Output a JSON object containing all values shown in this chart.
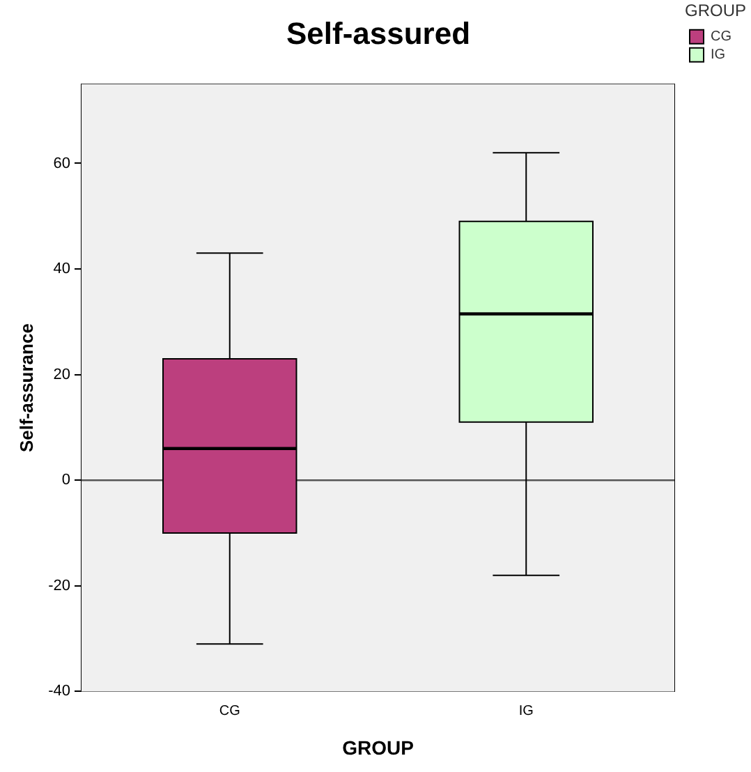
{
  "chart_data": {
    "type": "box",
    "title": "Self-assured",
    "xlabel": "GROUP",
    "ylabel": "Self-assurance",
    "legend_title": "GROUP",
    "legend": "top right",
    "categories": [
      "CG",
      "IG"
    ],
    "series": [
      {
        "name": "CG",
        "color": "#bc3f7e",
        "boxes": [
          {
            "low": -31,
            "q1": -10,
            "median": 6,
            "q3": 23,
            "high": 43
          },
          null
        ]
      },
      {
        "name": "IG",
        "color": "#ccffcc",
        "boxes": [
          null,
          {
            "low": -18,
            "q1": 11,
            "median": 31.5,
            "q3": 49,
            "high": 62
          }
        ]
      }
    ],
    "ylim": [
      -40,
      75
    ],
    "yticks": [
      -40,
      -20,
      0,
      20,
      40,
      60
    ],
    "grid": false,
    "ref_lines": [
      {
        "axis": "y",
        "value": 0,
        "color": "#555555"
      }
    ]
  }
}
